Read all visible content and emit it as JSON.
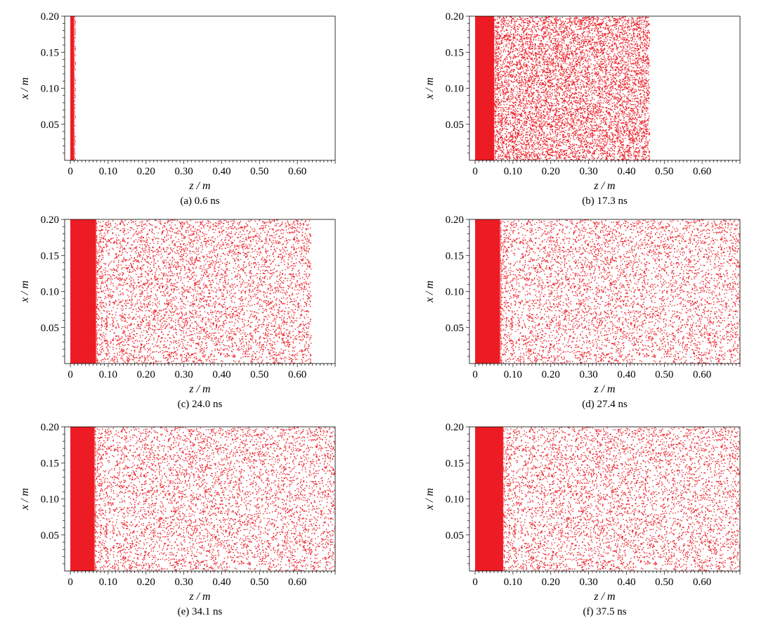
{
  "figure": {
    "marker_color": "#ED1C24",
    "axis_color": "#000000"
  },
  "chart_data": [
    {
      "type": "scatter",
      "caption": "(a) 0.6 ns",
      "xlabel": "z / m",
      "ylabel": "x / m",
      "xlim": [
        -0.015,
        0.7
      ],
      "ylim": [
        0,
        0.2
      ],
      "xticks": [
        "0",
        "0.10",
        "0.20",
        "0.30",
        "0.40",
        "0.50",
        "0.60"
      ],
      "yticks": [
        "0.05",
        "0.10",
        "0.15",
        "0.20"
      ],
      "dense_region": {
        "z_from": 0.0,
        "z_to": 0.01
      },
      "sparse_region": null,
      "sparse_density": 0
    },
    {
      "type": "scatter",
      "caption": "(b) 17.3 ns",
      "xlabel": "z / m",
      "ylabel": "x / m",
      "xlim": [
        -0.015,
        0.7
      ],
      "ylim": [
        0,
        0.2
      ],
      "xticks": [
        "0",
        "0.10",
        "0.20",
        "0.30",
        "0.40",
        "0.50",
        "0.60"
      ],
      "yticks": [
        "0.05",
        "0.10",
        "0.15",
        "0.20"
      ],
      "dense_region": {
        "z_from": 0.0,
        "z_to": 0.05
      },
      "sparse_region": {
        "z_from": 0.05,
        "z_to": 0.46
      },
      "sparse_density": 0.55
    },
    {
      "type": "scatter",
      "caption": "(c) 24.0 ns",
      "xlabel": "z / m",
      "ylabel": "x / m",
      "xlim": [
        -0.015,
        0.7
      ],
      "ylim": [
        0,
        0.2
      ],
      "xticks": [
        "0",
        "0.10",
        "0.20",
        "0.30",
        "0.40",
        "0.50",
        "0.60"
      ],
      "yticks": [
        "0.05",
        "0.10",
        "0.15",
        "0.20"
      ],
      "dense_region": {
        "z_from": 0.0,
        "z_to": 0.068
      },
      "sparse_region": {
        "z_from": 0.068,
        "z_to": 0.635
      },
      "sparse_density": 0.42
    },
    {
      "type": "scatter",
      "caption": "(d) 27.4 ns",
      "xlabel": "z / m",
      "ylabel": "x / m",
      "xlim": [
        -0.015,
        0.7
      ],
      "ylim": [
        0,
        0.2
      ],
      "xticks": [
        "0",
        "0.10",
        "0.20",
        "0.30",
        "0.40",
        "0.50",
        "0.60"
      ],
      "yticks": [
        "0.05",
        "0.10",
        "0.15",
        "0.20"
      ],
      "dense_region": {
        "z_from": 0.0,
        "z_to": 0.066
      },
      "sparse_region": {
        "z_from": 0.066,
        "z_to": 0.7
      },
      "sparse_density": 0.36
    },
    {
      "type": "scatter",
      "caption": "(e) 34.1 ns",
      "xlabel": "z / m",
      "ylabel": "x / m",
      "xlim": [
        -0.015,
        0.7
      ],
      "ylim": [
        0,
        0.2
      ],
      "xticks": [
        "0",
        "0.10",
        "0.20",
        "0.30",
        "0.40",
        "0.50",
        "0.60"
      ],
      "yticks": [
        "0.05",
        "0.10",
        "0.15",
        "0.20"
      ],
      "dense_region": {
        "z_from": 0.0,
        "z_to": 0.064
      },
      "sparse_region": {
        "z_from": 0.064,
        "z_to": 0.7
      },
      "sparse_density": 0.3
    },
    {
      "type": "scatter",
      "caption": "(f) 37.5 ns",
      "xlabel": "z / m",
      "ylabel": "x / m",
      "xlim": [
        -0.015,
        0.7
      ],
      "ylim": [
        0,
        0.2
      ],
      "xticks": [
        "0",
        "0.10",
        "0.20",
        "0.30",
        "0.40",
        "0.50",
        "0.60"
      ],
      "yticks": [
        "0.05",
        "0.10",
        "0.15",
        "0.20"
      ],
      "dense_region": {
        "z_from": 0.0,
        "z_to": 0.074
      },
      "sparse_region": {
        "z_from": 0.074,
        "z_to": 0.7
      },
      "sparse_density": 0.28
    }
  ]
}
